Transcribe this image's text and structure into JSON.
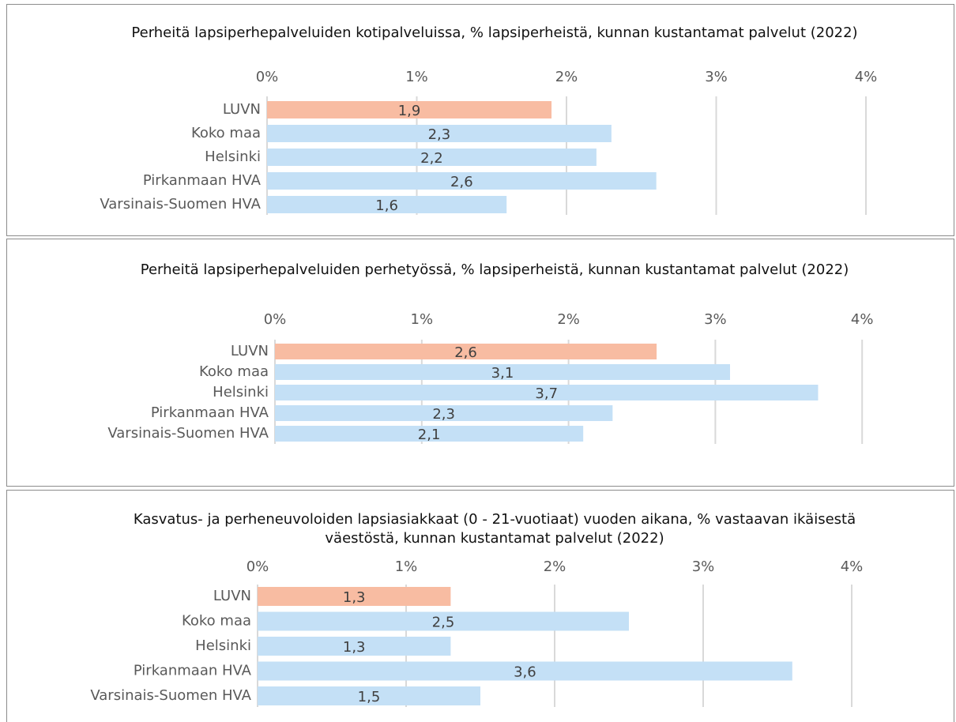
{
  "chart_data": [
    {
      "type": "bar",
      "orientation": "horizontal",
      "title": "Perheitä lapsiperhepalveluiden kotipalveluissa, % lapsiperheistä, kunnan kustantamat palvelut (2022)",
      "categories": [
        "LUVN",
        "Koko maa",
        "Helsinki",
        "Pirkanmaan HVA",
        "Varsinais-Suomen HVA"
      ],
      "values": [
        1.9,
        2.3,
        2.2,
        2.6,
        1.6
      ],
      "value_labels": [
        "1,9",
        "2,3",
        "2,2",
        "2,6",
        "1,6"
      ],
      "colors": [
        "#f8bca2",
        "#c4e0f6",
        "#c4e0f6",
        "#c4e0f6",
        "#c4e0f6"
      ],
      "xlim": [
        0,
        4
      ],
      "xticks": [
        {
          "value": 0,
          "label": "0%"
        },
        {
          "value": 1,
          "label": "1%"
        },
        {
          "value": 2,
          "label": "2%"
        },
        {
          "value": 3,
          "label": "3%"
        },
        {
          "value": 4,
          "label": "4%"
        }
      ],
      "grid": true
    },
    {
      "type": "bar",
      "orientation": "horizontal",
      "title": "Perheitä lapsiperhepalveluiden perhetyössä, % lapsiperheistä, kunnan kustantamat palvelut (2022)",
      "categories": [
        "LUVN",
        "Koko maa",
        "Helsinki",
        "Pirkanmaan HVA",
        "Varsinais-Suomen HVA"
      ],
      "values": [
        2.6,
        3.1,
        3.7,
        2.3,
        2.1
      ],
      "value_labels": [
        "2,6",
        "3,1",
        "3,7",
        "2,3",
        "2,1"
      ],
      "colors": [
        "#f8bca2",
        "#c4e0f6",
        "#c4e0f6",
        "#c4e0f6",
        "#c4e0f6"
      ],
      "xlim": [
        0,
        4
      ],
      "xticks": [
        {
          "value": 0,
          "label": "0%"
        },
        {
          "value": 1,
          "label": "1%"
        },
        {
          "value": 2,
          "label": "2%"
        },
        {
          "value": 3,
          "label": "3%"
        },
        {
          "value": 4,
          "label": "4%"
        }
      ],
      "grid": true
    },
    {
      "type": "bar",
      "orientation": "horizontal",
      "title": "Kasvatus- ja perheneuvoloiden lapsiasiakkaat (0 - 21-vuotiaat) vuoden aikana, % vastaavan ikäisestä väestöstä, kunnan kustantamat palvelut (2022)",
      "categories": [
        "LUVN",
        "Koko maa",
        "Helsinki",
        "Pirkanmaan HVA",
        "Varsinais-Suomen HVA"
      ],
      "values": [
        1.3,
        2.5,
        1.3,
        3.6,
        1.5
      ],
      "value_labels": [
        "1,3",
        "2,5",
        "1,3",
        "3,6",
        "1,5"
      ],
      "colors": [
        "#f8bca2",
        "#c4e0f6",
        "#c4e0f6",
        "#c4e0f6",
        "#c4e0f6"
      ],
      "xlim": [
        0,
        4
      ],
      "xticks": [
        {
          "value": 0,
          "label": "0%"
        },
        {
          "value": 1,
          "label": "1%"
        },
        {
          "value": 2,
          "label": "2%"
        },
        {
          "value": 3,
          "label": "3%"
        },
        {
          "value": 4,
          "label": "4%"
        }
      ],
      "grid": true
    }
  ]
}
